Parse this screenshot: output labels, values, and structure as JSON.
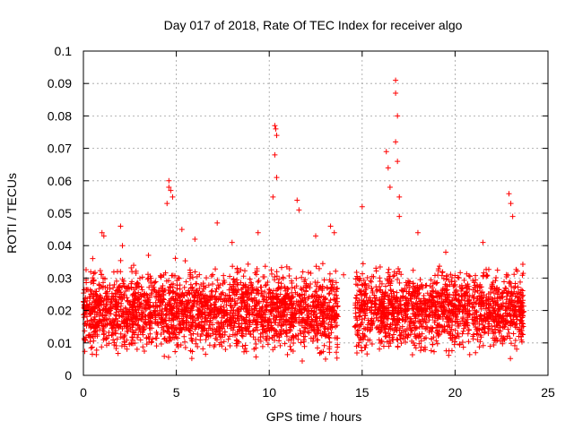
{
  "chart_data": {
    "type": "scatter",
    "title": "Day 017 of 2018, Rate Of TEC Index for receiver algo",
    "xlabel": "GPS time / hours",
    "ylabel": "ROTI / TECUs",
    "xlim": [
      0,
      25
    ],
    "ylim": [
      0,
      0.1
    ],
    "xticks": [
      "0",
      "5",
      "10",
      "15",
      "20",
      "25"
    ],
    "yticks": [
      "0",
      "0.01",
      "0.02",
      "0.03",
      "0.04",
      "0.05",
      "0.06",
      "0.07",
      "0.08",
      "0.09",
      "0.1"
    ],
    "grid": true,
    "marker": "+",
    "series_color": "#ff0000",
    "highlight_points": {
      "x": [
        4.6,
        4.6,
        4.7,
        4.8,
        4.5,
        10.3,
        10.35,
        10.4,
        10.3,
        10.4,
        10.2,
        16.8,
        16.8,
        16.9,
        16.8,
        16.9,
        16.3,
        16.4,
        16.5,
        17.0,
        17.0,
        2.0,
        2.1,
        1.0,
        1.1,
        5.3,
        7.2,
        8.0,
        11.5,
        11.6,
        13.3,
        13.5,
        15.0,
        18.0,
        22.9,
        23.0,
        23.1,
        9.4,
        12.5,
        6.0,
        21.5,
        19.5,
        0.5,
        14.0,
        3.5
      ],
      "y": [
        0.06,
        0.058,
        0.057,
        0.055,
        0.053,
        0.077,
        0.076,
        0.074,
        0.068,
        0.061,
        0.055,
        0.091,
        0.087,
        0.08,
        0.072,
        0.066,
        0.069,
        0.064,
        0.058,
        0.055,
        0.049,
        0.046,
        0.04,
        0.044,
        0.043,
        0.045,
        0.047,
        0.041,
        0.054,
        0.051,
        0.046,
        0.044,
        0.052,
        0.044,
        0.056,
        0.053,
        0.049,
        0.044,
        0.043,
        0.042,
        0.041,
        0.038,
        0.036,
        0.031,
        0.037
      ]
    },
    "dense_hours": [
      [
        0,
        13.7
      ],
      [
        14.6,
        20.8
      ],
      [
        20.9,
        23.7
      ]
    ],
    "dense_range": [
      0.003,
      0.035
    ],
    "points_per_hour": 170
  }
}
